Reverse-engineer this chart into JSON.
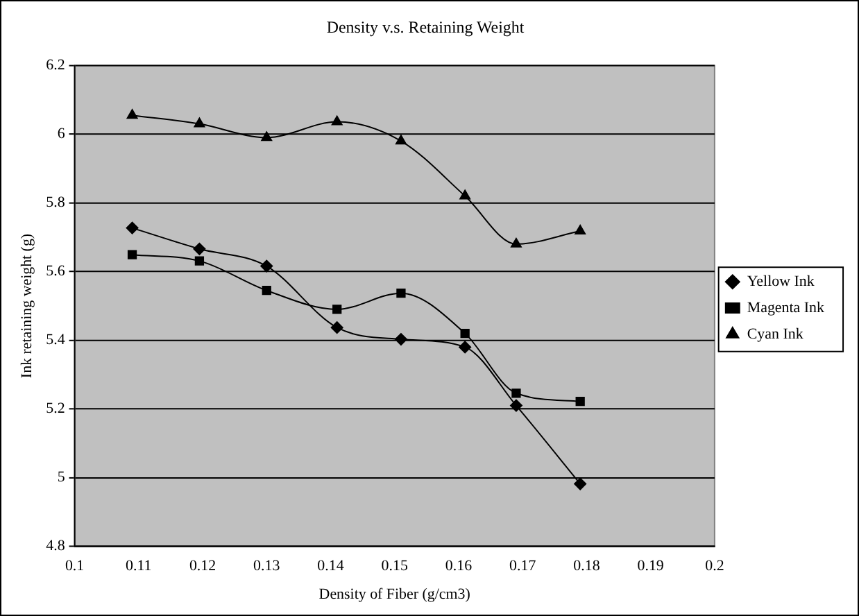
{
  "chart_data": {
    "type": "line",
    "title": "Density v.s. Retaining Weight",
    "xlabel": "Density of Fiber (g/cm3)",
    "ylabel": "Ink retaining weight (g)",
    "x": [
      0.109,
      0.1195,
      0.13,
      0.141,
      0.151,
      0.161,
      0.169,
      0.179
    ],
    "series": [
      {
        "name": "Yellow Ink",
        "color": "#000000",
        "marker": "diamond",
        "values": [
          5.727,
          5.666,
          5.616,
          5.437,
          5.403,
          5.38,
          5.21,
          4.982
        ]
      },
      {
        "name": "Magenta Ink",
        "color": "#000000",
        "marker": "square",
        "values": [
          5.649,
          5.631,
          5.545,
          5.49,
          5.537,
          5.42,
          5.246,
          5.222
        ]
      },
      {
        "name": "Cyan Ink",
        "color": "#000000",
        "marker": "triangle",
        "values": [
          6.055,
          6.03,
          5.99,
          6.036,
          5.98,
          5.82,
          5.68,
          5.718
        ]
      }
    ],
    "xlim": [
      0.1,
      0.2
    ],
    "xticks": [
      0.1,
      0.11,
      0.12,
      0.13,
      0.14,
      0.15,
      0.16,
      0.17,
      0.18,
      0.19,
      0.2
    ],
    "ylim": [
      4.8,
      6.2
    ],
    "yticks": [
      4.8,
      5,
      5.2,
      5.4,
      5.6,
      5.8,
      6,
      6.2
    ],
    "grid": "y",
    "legend": "right",
    "line_style": "solid"
  }
}
